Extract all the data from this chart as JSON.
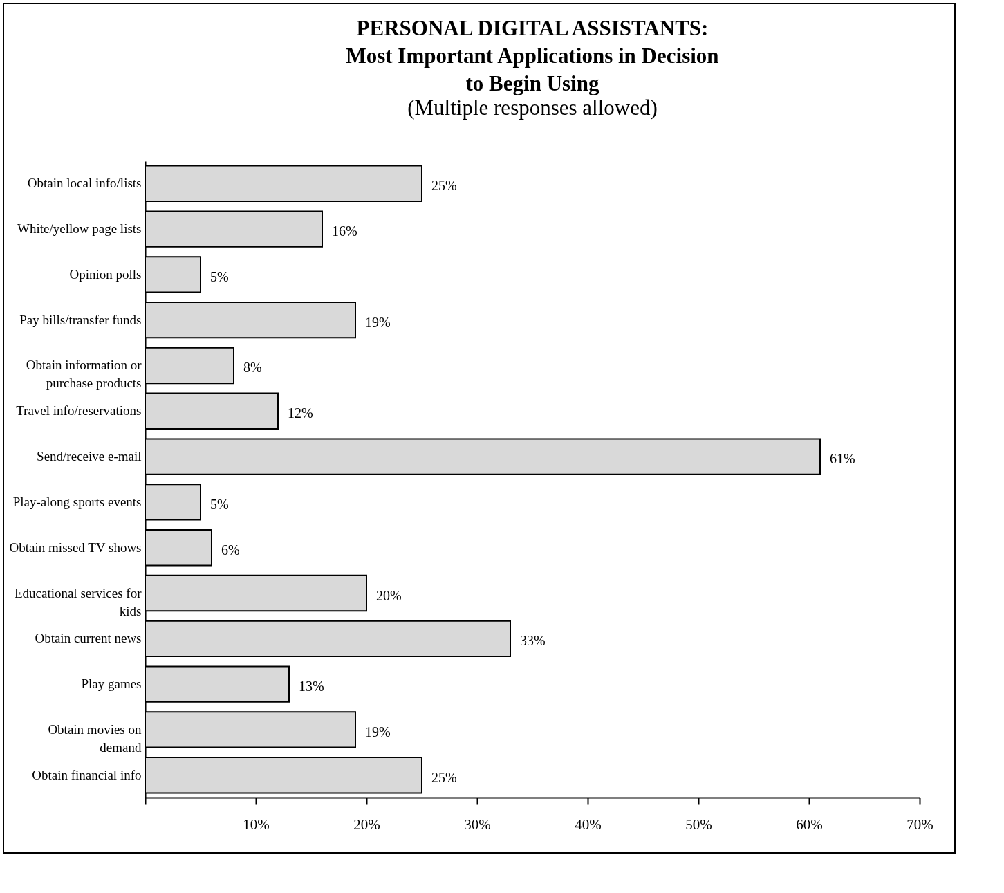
{
  "chart_data": {
    "type": "bar",
    "orientation": "horizontal",
    "title": "PERSONAL DIGITAL ASSISTANTS: Most Important Applications in Decision to Begin Using",
    "subtitle": "(Multiple responses allowed)",
    "categories": [
      "Obtain local info/lists",
      "White/yellow page lists",
      "Opinion polls",
      "Pay bills/transfer funds",
      "Obtain information or purchase products",
      "Travel info/reservations",
      "Send/receive e-mail",
      "Play-along sports events",
      "Obtain missed TV shows",
      "Educational services for kids",
      "Obtain current news",
      "Play games",
      "Obtain movies on demand",
      "Obtain financial info"
    ],
    "values": [
      25,
      16,
      5,
      19,
      8,
      12,
      61,
      5,
      6,
      20,
      33,
      13,
      19,
      25
    ],
    "value_labels": [
      "25%",
      "16%",
      "5%",
      "19%",
      "8%",
      "12%",
      "61%",
      "5%",
      "6%",
      "20%",
      "33%",
      "13%",
      "19%",
      "25%"
    ],
    "color": "#d9d9d9",
    "xlim": [
      0,
      70
    ],
    "xticks": [
      {
        "value": 0,
        "label": null
      },
      {
        "value": 10,
        "label": "10%"
      },
      {
        "value": 20,
        "label": "20%"
      },
      {
        "value": 30,
        "label": "30%"
      },
      {
        "value": 40,
        "label": "40%"
      },
      {
        "value": 50,
        "label": "50%"
      },
      {
        "value": 60,
        "label": "60%"
      },
      {
        "value": 70,
        "label": "70%"
      }
    ],
    "grid": false
  }
}
